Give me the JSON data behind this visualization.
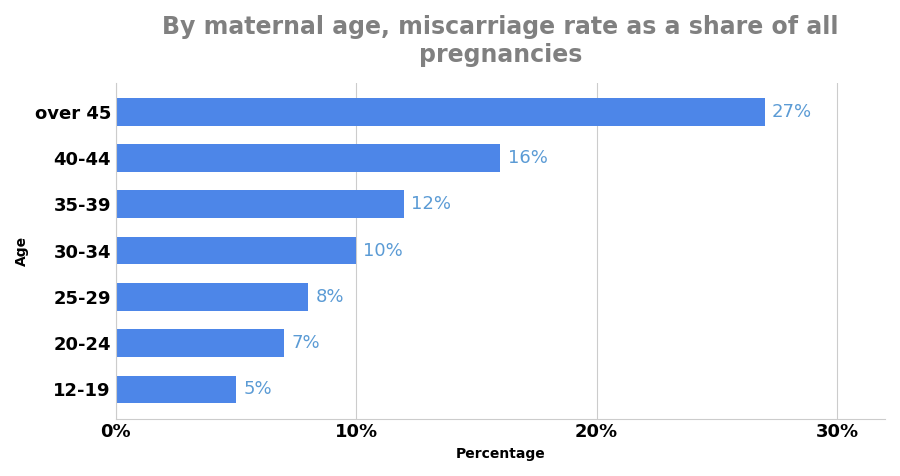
{
  "categories": [
    "12-19",
    "20-24",
    "25-29",
    "30-34",
    "35-39",
    "40-44",
    "over 45"
  ],
  "values": [
    5,
    7,
    8,
    10,
    12,
    16,
    27
  ],
  "bar_color": "#4d86e8",
  "label_color": "#5b9bd5",
  "title": "By maternal age, miscarriage rate as a share of all\npregnancies",
  "title_color": "#808080",
  "xlabel": "Percentage",
  "ylabel": "Age",
  "xlim": [
    0,
    32
  ],
  "xticks": [
    0,
    10,
    20,
    30
  ],
  "xtick_labels": [
    "0%",
    "10%",
    "20%",
    "30%"
  ],
  "background_color": "#ffffff",
  "title_fontsize": 17,
  "label_fontsize": 13,
  "axis_label_fontsize": 10,
  "tick_fontsize": 13,
  "grid_color": "#cccccc"
}
